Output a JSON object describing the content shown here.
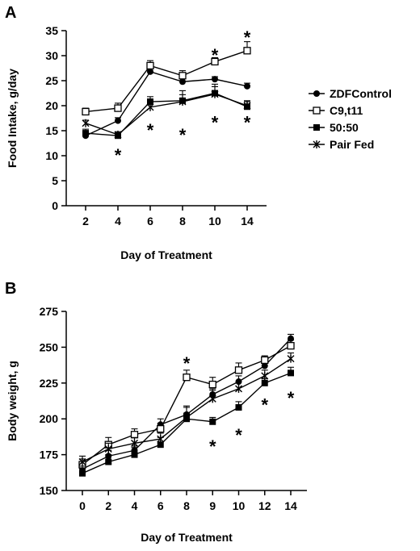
{
  "chart_data": [
    {
      "panel": "A",
      "type": "line",
      "ylabel": "Food Intake, g/day",
      "xlabel": "Day of Treatment",
      "categories": [
        "2",
        "4",
        "6",
        "8",
        "10",
        "14"
      ],
      "ylim": [
        0,
        35
      ],
      "yticks": [
        0,
        5,
        10,
        15,
        20,
        25,
        30,
        35
      ],
      "grid": false,
      "legend_position": "right",
      "series": [
        {
          "name": "ZDFControl",
          "marker": "filled-circle",
          "values": [
            14.0,
            17.0,
            26.8,
            24.8,
            25.3,
            23.9
          ],
          "err": [
            0.8,
            0.6,
            0.6,
            1.0,
            0.5,
            0.6
          ]
        },
        {
          "name": "C9,t11",
          "marker": "open-square",
          "values": [
            18.8,
            19.5,
            28.0,
            26.0,
            28.8,
            31.0
          ],
          "err": [
            0.7,
            1.0,
            1.0,
            1.0,
            0.8,
            1.8
          ]
        },
        {
          "name": "50:50",
          "marker": "filled-square",
          "values": [
            14.5,
            14.0,
            20.8,
            21.0,
            22.5,
            19.8
          ],
          "err": [
            0.8,
            0.6,
            1.0,
            1.2,
            1.3,
            1.0
          ]
        },
        {
          "name": "Pair Fed",
          "marker": "asterisk",
          "values": [
            16.5,
            14.2,
            19.7,
            20.8,
            22.3,
            20.0
          ],
          "err": [
            0.6,
            0.6,
            1.0,
            2.2,
            2.0,
            1.0
          ]
        }
      ],
      "annotations": [
        {
          "text": "*",
          "x": "14",
          "y": 34.0
        },
        {
          "text": "*",
          "x": "10",
          "y": 30.5
        },
        {
          "text": "*",
          "x": "4",
          "y": 10.5
        },
        {
          "text": "*",
          "x": "6",
          "y": 15.5
        },
        {
          "text": "*",
          "x": "8",
          "y": 14.5
        },
        {
          "text": "*",
          "x": "10",
          "y": 17.0
        },
        {
          "text": "*",
          "x": "14",
          "y": 17.0
        }
      ]
    },
    {
      "panel": "B",
      "type": "line",
      "ylabel": "Body weight, g",
      "xlabel": "Day of Treatment",
      "categories": [
        "0",
        "2",
        "4",
        "6",
        "8",
        "9",
        "10",
        "12",
        "14"
      ],
      "ylim": [
        150,
        275
      ],
      "yticks": [
        150,
        175,
        200,
        225,
        250,
        275
      ],
      "grid": false,
      "series": [
        {
          "name": "ZDFControl",
          "marker": "filled-circle",
          "values": [
            165,
            174,
            178,
            196,
            203,
            217,
            226,
            237,
            256
          ],
          "err": [
            4,
            4,
            3,
            4,
            5,
            4,
            4,
            4,
            3
          ]
        },
        {
          "name": "C9,t11",
          "marker": "open-square",
          "values": [
            168,
            182,
            189,
            193,
            229,
            224,
            234,
            241,
            251
          ],
          "err": [
            4,
            5,
            4,
            4,
            5,
            5,
            5,
            3,
            4
          ]
        },
        {
          "name": "50:50",
          "marker": "filled-square",
          "values": [
            162,
            170,
            175,
            182,
            200,
            198,
            208,
            225,
            232
          ],
          "err": [
            5,
            5,
            5,
            5,
            4,
            3,
            4,
            3,
            4
          ]
        },
        {
          "name": "Pair Fed",
          "marker": "asterisk",
          "values": [
            170,
            179,
            183,
            186,
            201,
            214,
            221,
            230,
            242
          ],
          "err": [
            4,
            4,
            4,
            4,
            8,
            6,
            5,
            4,
            4
          ]
        }
      ],
      "annotations": [
        {
          "text": "*",
          "x": "8",
          "y": 240
        },
        {
          "text": "*",
          "x": "9",
          "y": 182
        },
        {
          "text": "*",
          "x": "10",
          "y": 190
        },
        {
          "text": "*",
          "x": "12",
          "y": 211
        },
        {
          "text": "*",
          "x": "14",
          "y": 216
        }
      ]
    }
  ]
}
